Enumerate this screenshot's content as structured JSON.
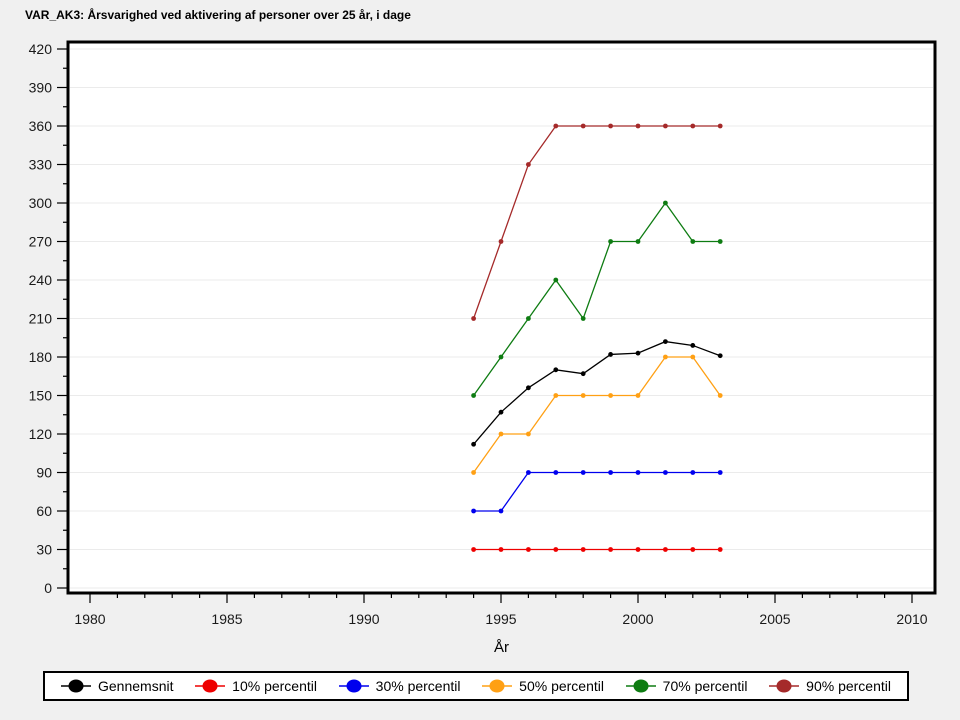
{
  "chart_data": {
    "type": "line",
    "title": "VAR_AK3: Årsvarighed ved aktivering af personer over 25 år, i dage",
    "xlabel": "År",
    "x": [
      1994,
      1995,
      1996,
      1997,
      1998,
      1999,
      2000,
      2001,
      2002,
      2003
    ],
    "x_axis": {
      "min": 1980,
      "max": 2010,
      "major_ticks": [
        1980,
        1985,
        1990,
        1995,
        2000,
        2005,
        2010
      ],
      "minor_step": 1
    },
    "y_axis": {
      "min": 0,
      "max": 420,
      "major_ticks": [
        0,
        30,
        60,
        90,
        120,
        150,
        180,
        210,
        240,
        270,
        300,
        330,
        360,
        390,
        420
      ],
      "minor_step": 15
    },
    "grid": "horizontal-major",
    "legend_position": "bottom",
    "plot_bg": "#ffffff",
    "page_bg": "#f0f0f0",
    "grid_color": "#ebebeb",
    "axis_color": "#000000",
    "series": [
      {
        "name": "Gennemsnit",
        "color": "#000000",
        "values": [
          112,
          137,
          156,
          170,
          167,
          182,
          183,
          192,
          189,
          181
        ]
      },
      {
        "name": "10% percentil",
        "color": "#ee0000",
        "values": [
          30,
          30,
          30,
          30,
          30,
          30,
          30,
          30,
          30,
          30
        ]
      },
      {
        "name": "30% percentil",
        "color": "#0000ee",
        "values": [
          60,
          60,
          90,
          90,
          90,
          90,
          90,
          90,
          90,
          90
        ]
      },
      {
        "name": "50% percentil",
        "color": "#ffa014",
        "values": [
          90,
          120,
          120,
          150,
          150,
          150,
          150,
          180,
          180,
          150
        ]
      },
      {
        "name": "70% percentil",
        "color": "#0e7c12",
        "values": [
          150,
          180,
          210,
          240,
          210,
          270,
          270,
          300,
          270,
          270
        ]
      },
      {
        "name": "90% percentil",
        "color": "#a52a2a",
        "values": [
          210,
          270,
          330,
          360,
          360,
          360,
          360,
          360,
          360,
          360
        ]
      }
    ]
  }
}
